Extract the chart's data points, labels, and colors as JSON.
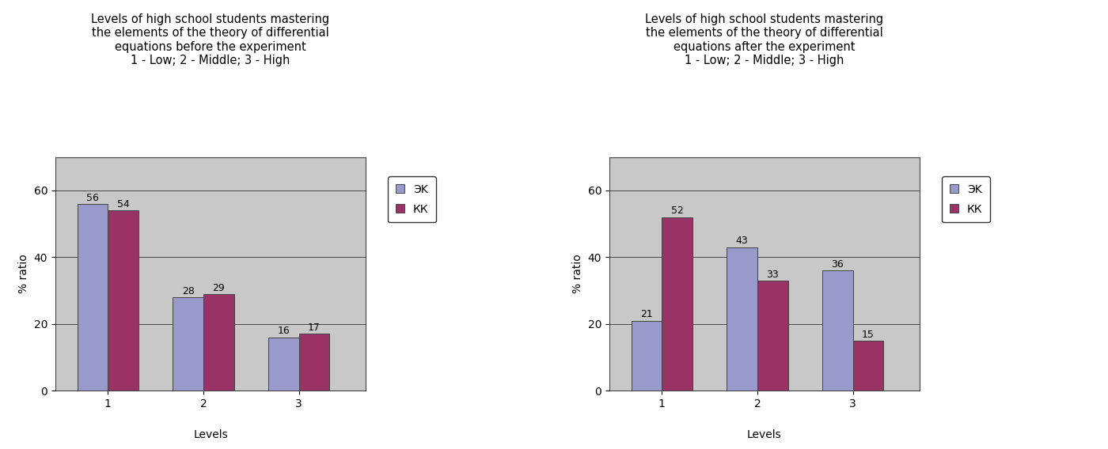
{
  "chart1": {
    "title": "Levels of high school students mastering\nthe elements of the theory of differential\nequations before the experiment\n1 - Low; 2 - Middle; 3 - High",
    "ek_values": [
      56,
      28,
      16
    ],
    "kk_values": [
      54,
      29,
      17
    ],
    "xlabel": "Levels",
    "ylabel": "% ratio",
    "ylim": [
      0,
      70
    ],
    "yticks": [
      0,
      20,
      40,
      60
    ],
    "xticks": [
      1,
      2,
      3
    ],
    "bar_labels_ek": [
      "56",
      "28",
      "16"
    ],
    "bar_labels_kk": [
      "54",
      "29",
      "17"
    ]
  },
  "chart2": {
    "title": "Levels of high school students mastering\nthe elements of the theory of differential\nequations after the experiment\n1 - Low; 2 - Middle; 3 - High",
    "ek_values": [
      21,
      43,
      36
    ],
    "kk_values": [
      52,
      33,
      15
    ],
    "xlabel": "Levels",
    "ylabel": "% ratio",
    "ylim": [
      0,
      70
    ],
    "yticks": [
      0,
      20,
      40,
      60
    ],
    "xticks": [
      1,
      2,
      3
    ],
    "bar_labels_ek": [
      "21",
      "43",
      "36"
    ],
    "bar_labels_kk": [
      "52",
      "33",
      "15"
    ]
  },
  "ek_color": "#9999cc",
  "kk_color": "#993366",
  "bar_width": 0.32,
  "legend_label_ek": "ЭK",
  "legend_label_kk": "КК",
  "bg_color": "#c8c8c8",
  "title_fontsize": 10.5,
  "axis_fontsize": 10,
  "label_fontsize": 9,
  "tick_fontsize": 10
}
